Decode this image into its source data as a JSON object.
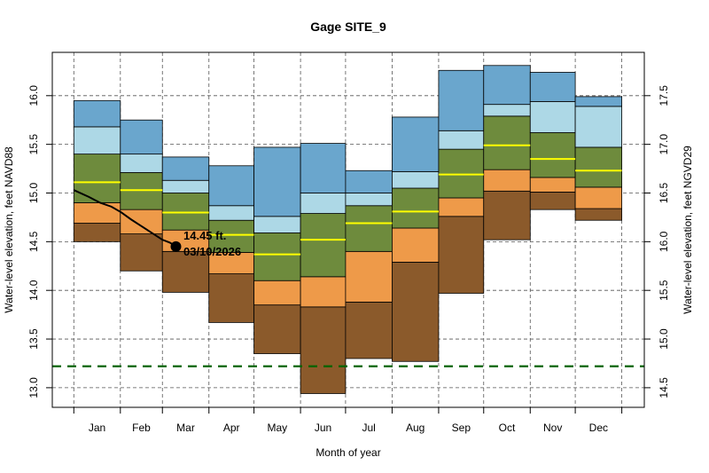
{
  "chart_data": {
    "type": "area",
    "title": "Gage SITE_9",
    "xlabel": "Month of year",
    "ylabel": "Water-level elevation, feet NAVD88",
    "ylabel_right": "Water-level elevation, feet NGVD29",
    "right_axis_offset": 1.5,
    "ylim": [
      12.8,
      16.45
    ],
    "yticks": [
      "13.0",
      "13.5",
      "14.0",
      "14.5",
      "15.0",
      "15.5",
      "16.0"
    ],
    "yticks_right": [
      "14.5",
      "15.0",
      "15.5",
      "16.0",
      "16.5",
      "17.0",
      "17.5"
    ],
    "grid": true,
    "categories": [
      "Jan",
      "Feb",
      "Mar",
      "Apr",
      "May",
      "Jun",
      "Jul",
      "Aug",
      "Sep",
      "Oct",
      "Nov",
      "Dec"
    ],
    "band_colors": [
      "#8b5a2b",
      "#ee9a49",
      "#6e8b3d",
      "#add8e6",
      "#6aa6cd"
    ],
    "median_color": "#ffff00",
    "band_edges": [
      [
        14.5,
        14.69,
        14.9,
        15.4,
        15.68,
        15.95
      ],
      [
        14.2,
        14.58,
        14.83,
        15.21,
        15.4,
        15.75
      ],
      [
        13.98,
        14.4,
        14.62,
        15.0,
        15.13,
        15.37
      ],
      [
        13.67,
        14.17,
        14.39,
        14.72,
        14.87,
        15.28
      ],
      [
        13.35,
        13.85,
        14.1,
        14.59,
        14.76,
        15.47
      ],
      [
        12.94,
        13.83,
        14.14,
        14.79,
        15.0,
        15.51
      ],
      [
        13.3,
        13.88,
        14.4,
        14.87,
        15.0,
        15.23
      ],
      [
        13.27,
        14.29,
        14.64,
        15.05,
        15.22,
        15.78
      ],
      [
        13.97,
        14.76,
        14.95,
        15.45,
        15.64,
        16.26
      ],
      [
        14.52,
        15.02,
        15.24,
        15.79,
        15.91,
        16.31
      ],
      [
        14.83,
        15.01,
        15.16,
        15.62,
        15.94,
        16.24
      ],
      [
        14.72,
        14.84,
        15.06,
        15.47,
        15.89,
        15.99
      ]
    ],
    "median": [
      15.11,
      15.03,
      14.8,
      14.57,
      14.37,
      14.52,
      14.69,
      14.81,
      15.19,
      15.49,
      15.35,
      15.23
    ],
    "observed": {
      "day_of_year": [
        0,
        10,
        17.5,
        25,
        31.7,
        38,
        45,
        54,
        59,
        64,
        68
      ],
      "values": [
        15.03,
        14.96,
        14.9,
        14.86,
        14.8,
        14.73,
        14.66,
        14.57,
        14.52,
        14.49,
        14.45
      ],
      "color": "#000000"
    },
    "last_point": {
      "value_label": "14.45 ft.",
      "date_label": "03/10/2026"
    },
    "reference_line": {
      "value": 13.22,
      "color": "#006400"
    }
  }
}
